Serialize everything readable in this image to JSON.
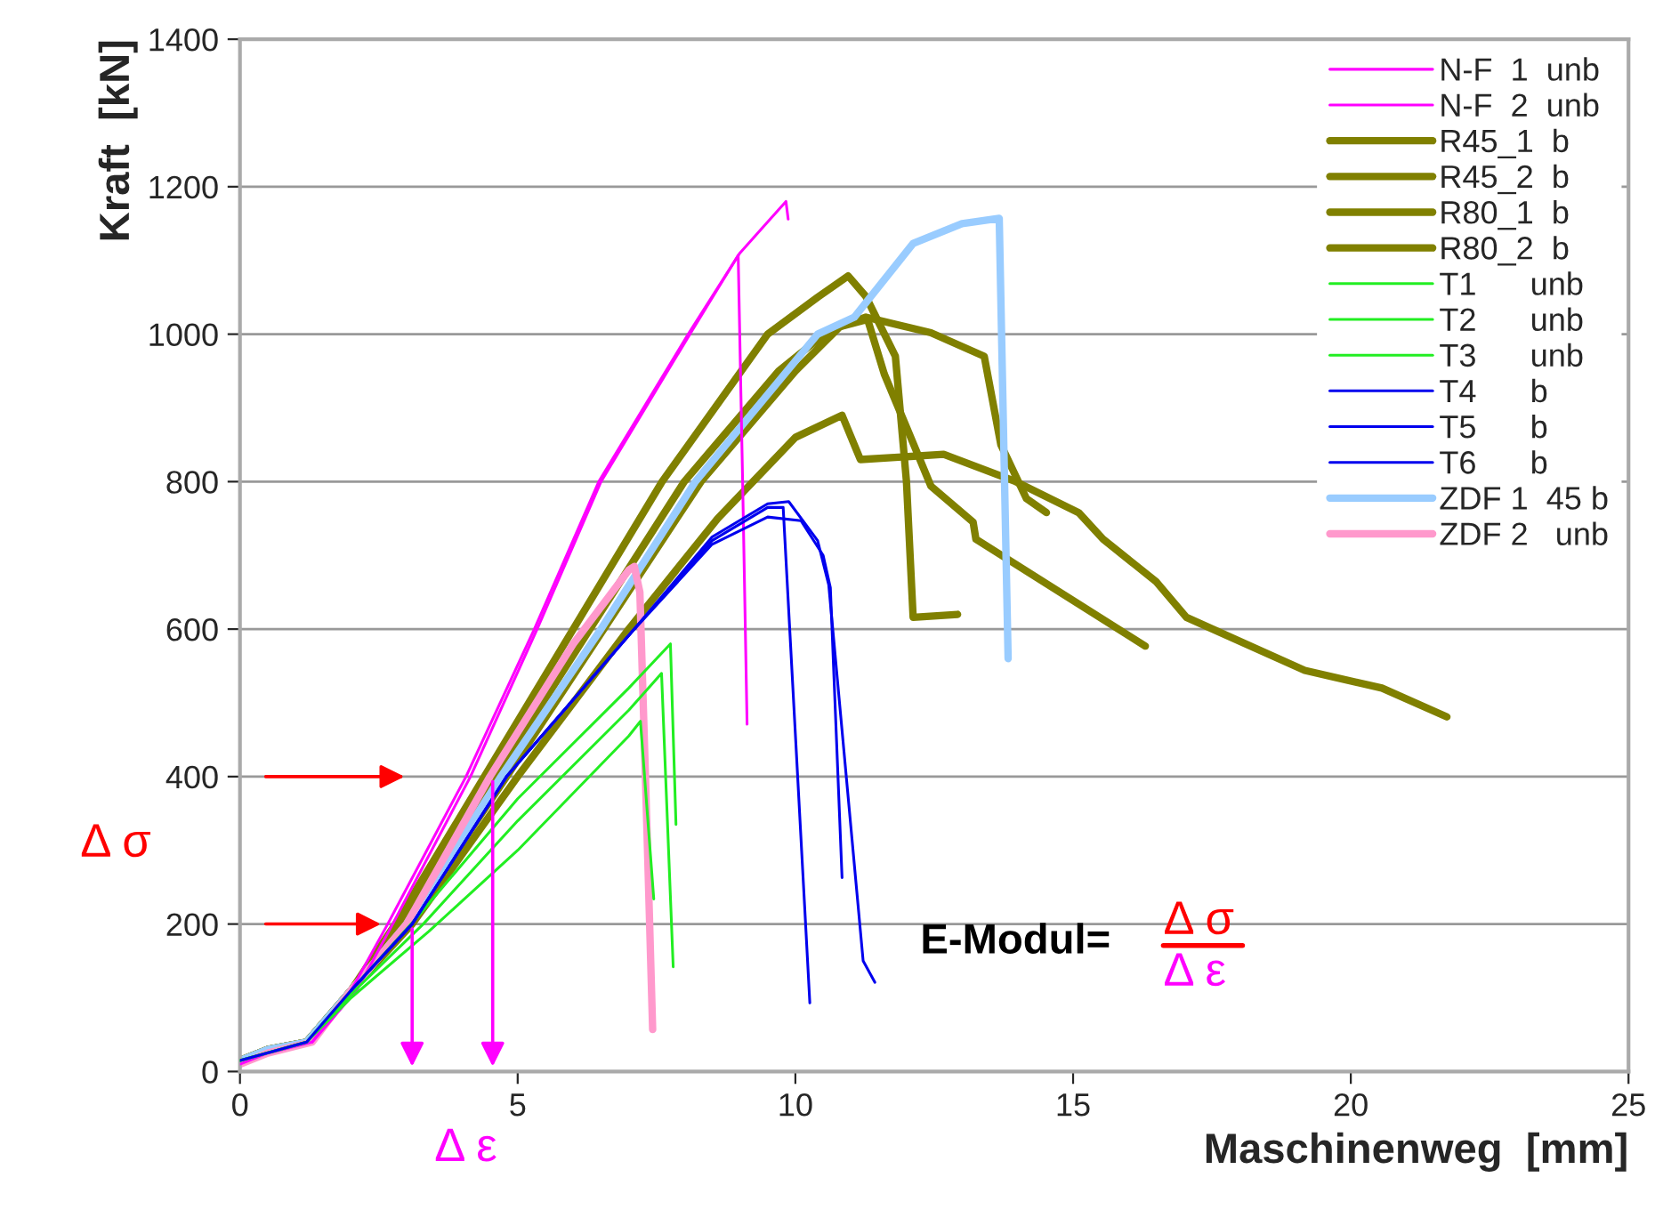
{
  "chart_data": {
    "type": "line",
    "xlabel": "Maschinenweg  [mm]",
    "ylabel": "Kraft  [kN]",
    "xlim": [
      0,
      25
    ],
    "ylim": [
      0,
      1400
    ],
    "xticks": [
      0,
      5,
      10,
      15,
      20,
      25
    ],
    "yticks": [
      0,
      200,
      400,
      600,
      800,
      1000,
      1200,
      1400
    ],
    "grid": "y",
    "legend": "top right",
    "marker": "none",
    "line_style": "solid",
    "annotations": [
      "Δ σ",
      "Δ ε",
      "E-Modul=",
      "Δ σ",
      "Δ ε"
    ],
    "series": [
      {
        "name": "N-F  1  unb",
        "color": "#ff00ff",
        "x": [
          1.3,
          2.0,
          2.66,
          4.07,
          5.3,
          6.46,
          8.07,
          9.0,
          9.83,
          9.87
        ],
        "values": [
          40,
          110,
          200,
          400,
          600,
          800,
          1000,
          1110,
          1180,
          1156
        ]
      },
      {
        "name": "N-F  2  unb",
        "color": "#ff00ff",
        "x": [
          0,
          0.5,
          1.3,
          2.1,
          2.75,
          4.15,
          5.35,
          6.5,
          8.1,
          8.97,
          9.05,
          9.13
        ],
        "values": [
          10,
          25,
          40,
          110,
          200,
          400,
          600,
          800,
          1000,
          1107,
          800,
          471
        ]
      },
      {
        "name": "R45_1  b",
        "color": "#808000",
        "x": [
          0,
          0.5,
          1.2,
          2.0,
          2.8,
          4.4,
          7.6,
          9.5,
          10.4,
          10.95,
          11.27,
          11.8,
          12.0,
          12.12,
          12.92
        ],
        "values": [
          15,
          30,
          40,
          110,
          200,
          400,
          800,
          1000,
          1050,
          1079,
          1051,
          970,
          800,
          616,
          620
        ]
      },
      {
        "name": "R45_2  b",
        "color": "#808000",
        "x": [
          0,
          0.5,
          1.2,
          2.0,
          2.9,
          4.6,
          8.0,
          9.7,
          10.6,
          11.27,
          12.44,
          13.4,
          13.7,
          14.16,
          14.52
        ],
        "values": [
          15,
          30,
          40,
          110,
          200,
          400,
          800,
          950,
          1005,
          1023,
          1002,
          970,
          850,
          777,
          758
        ]
      },
      {
        "name": "R80_1  b",
        "color": "#808000",
        "x": [
          0,
          0.5,
          1.2,
          2.0,
          3.0,
          4.8,
          8.3,
          10.0,
          10.8,
          11.3,
          11.6,
          12.0,
          12.44,
          13.2,
          13.25,
          16.3
        ],
        "values": [
          15,
          30,
          40,
          110,
          200,
          400,
          800,
          950,
          1010,
          1020,
          946,
          874,
          794,
          745,
          722,
          577
        ]
      },
      {
        "name": "R80_2  b",
        "color": "#808000",
        "x": [
          0,
          0.5,
          1.2,
          2.0,
          3.1,
          5.0,
          7.0,
          8.6,
          10.0,
          10.84,
          11.17,
          12.67,
          13.94,
          15.1,
          15.54,
          16.5,
          17.04,
          19.17,
          20.56,
          21.73
        ],
        "values": [
          15,
          30,
          40,
          110,
          200,
          400,
          600,
          750,
          860,
          890,
          830,
          837,
          801,
          758,
          722,
          664,
          616,
          544,
          520,
          481
        ]
      },
      {
        "name": "T1      unb",
        "color": "#22ee22",
        "x": [
          0,
          1.2,
          2.0,
          3.2,
          5.0,
          7.0,
          7.75,
          7.85
        ],
        "values": [
          15,
          40,
          110,
          210,
          370,
          520,
          580,
          335
        ]
      },
      {
        "name": "T2      unb",
        "color": "#22ee22",
        "x": [
          0,
          1.2,
          2.0,
          3.3,
          5.0,
          7.0,
          7.59,
          7.8
        ],
        "values": [
          15,
          40,
          105,
          200,
          340,
          490,
          540,
          142
        ]
      },
      {
        "name": "T3      unb",
        "color": "#22ee22",
        "x": [
          0,
          1.2,
          2.0,
          3.4,
          5.0,
          7.0,
          7.21,
          7.45
        ],
        "values": [
          15,
          40,
          100,
          190,
          300,
          455,
          475,
          234
        ]
      },
      {
        "name": "T4      b",
        "color": "#0000ee",
        "x": [
          0,
          1.2,
          2.0,
          3.1,
          4.8,
          7.1,
          8.5,
          9.5,
          9.78,
          10.26
        ],
        "values": [
          15,
          40,
          110,
          200,
          400,
          600,
          720,
          765,
          765,
          93
        ]
      },
      {
        "name": "T5      b",
        "color": "#0000ee",
        "x": [
          2.0,
          3.1,
          4.8,
          7.1,
          8.5,
          9.5,
          10.1,
          10.5,
          10.63,
          10.84
        ],
        "values": [
          110,
          200,
          400,
          600,
          715,
          752,
          747,
          700,
          656,
          263
        ]
      },
      {
        "name": "T6      b",
        "color": "#0000ee",
        "x": [
          2.0,
          3.1,
          4.8,
          7.1,
          8.5,
          9.5,
          9.88,
          10.4,
          10.6,
          11.22,
          11.43
        ],
        "values": [
          110,
          200,
          400,
          600,
          725,
          770,
          773,
          720,
          660,
          150,
          121
        ]
      },
      {
        "name": "ZDF 1  45 b",
        "color": "#99ccff",
        "x": [
          0,
          0.5,
          1.2,
          2.0,
          3.0,
          4.7,
          6.5,
          8.2,
          10.4,
          11.06,
          12.12,
          13.0,
          13.67,
          13.83
        ],
        "values": [
          15,
          30,
          40,
          110,
          200,
          400,
          600,
          800,
          1000,
          1023,
          1123,
          1150,
          1157,
          560
        ]
      },
      {
        "name": "ZDF 2   unb",
        "color": "#ff99cc",
        "x": [
          0,
          0.5,
          1.3,
          2.0,
          3.0,
          4.5,
          6.0,
          7.0,
          7.1,
          7.2,
          7.3,
          7.43
        ],
        "values": [
          10,
          25,
          40,
          110,
          200,
          400,
          580,
          680,
          685,
          650,
          400,
          57
        ]
      }
    ]
  }
}
